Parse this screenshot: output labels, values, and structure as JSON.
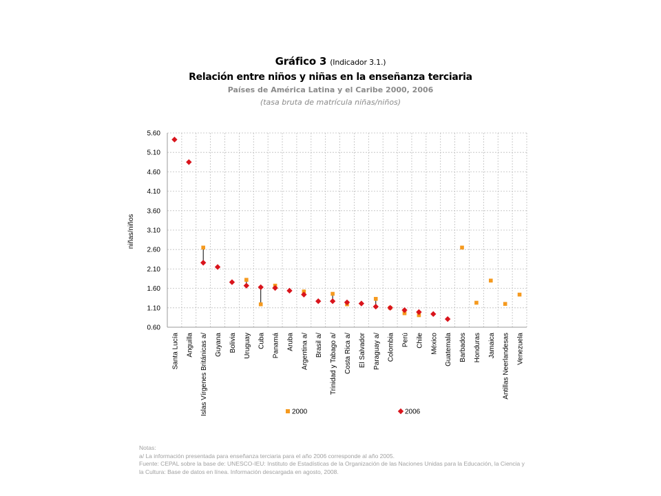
{
  "header": {
    "title_main": "Gráfico 3",
    "title_indicator": "(Indicador 3.1.)",
    "subtitle": "Relación entre niños y niñas en la enseñanza terciaria",
    "scope": "Países de América Latina y el Caribe 2000, 2006",
    "unit": "(tasa bruta de matrícula niñas/niños)"
  },
  "colors": {
    "series_2000": "#f59a1f",
    "series_2006": "#d9141c",
    "grid": "#bdbdbd",
    "connector": "#000000"
  },
  "chart_data": {
    "type": "scatter",
    "ylabel": "niñas/niños",
    "ylim": [
      0.6,
      5.6
    ],
    "yticks": [
      "5.60",
      "5.10",
      "4.60",
      "4.10",
      "3.60",
      "3.10",
      "2.60",
      "2.10",
      "1.60",
      "1.10",
      "0.60"
    ],
    "grid": true,
    "legend_position": "bottom",
    "categories": [
      "Santa Lucía",
      "Anguilla",
      "Islas Vírgenes Británicas a/",
      "Guyana",
      "Bolivia",
      "Uruguay",
      "Cuba",
      "Panamá",
      "Aruba",
      "Argentina a/",
      "Brasil a/",
      "Trinidad y Tabago a/",
      "Costa Rica a/",
      "El Salvador",
      "Paraguay a/",
      "Colombia",
      "Perú",
      "Chile",
      "México",
      "Guatemala",
      "Barbados",
      "Honduras",
      "Jamaica",
      "Antillas Neerlandesas",
      "Venezuela"
    ],
    "series": [
      {
        "name": "2000",
        "marker": "square",
        "values": [
          null,
          null,
          2.65,
          null,
          null,
          1.82,
          1.19,
          1.67,
          null,
          1.52,
          null,
          1.46,
          1.19,
          null,
          1.33,
          1.1,
          0.96,
          0.91,
          null,
          null,
          2.65,
          1.23,
          1.8,
          1.2,
          1.44
        ]
      },
      {
        "name": "2006",
        "marker": "diamond",
        "values": [
          5.43,
          4.85,
          2.26,
          2.15,
          1.76,
          1.67,
          1.63,
          1.61,
          1.54,
          1.44,
          1.27,
          1.27,
          1.24,
          1.21,
          1.13,
          1.1,
          1.04,
          0.99,
          0.94,
          0.81,
          null,
          null,
          null,
          null,
          null
        ]
      }
    ]
  },
  "notes": {
    "heading": "Notas:",
    "note_a": "a/ La información presentada para enseñanza terciaria para el año 2006 corresponde al año 2005.",
    "source": "Fuente: CEPAL sobre la base de: UNESCO-IEU: Instituto de Estadísticas de la Organización de las Naciones Unidas para la Educación, la Ciencia y la Cultura: Base de datos en línea. Información descargada en agosto, 2008."
  }
}
